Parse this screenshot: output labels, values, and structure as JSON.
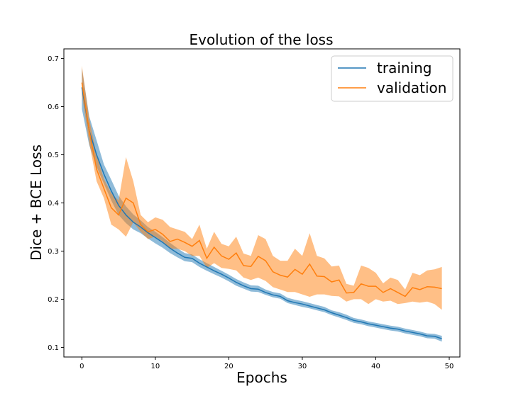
{
  "chart_data": {
    "type": "line",
    "title": "Evolution of the loss",
    "xlabel": "Epochs",
    "ylabel": "Dice + BCE Loss",
    "xlim": [
      -2.45,
      51.45
    ],
    "ylim": [
      0.08,
      0.72
    ],
    "xticks": [
      0,
      10,
      20,
      30,
      40,
      50
    ],
    "yticks": [
      0.1,
      0.2,
      0.3,
      0.4,
      0.5,
      0.6,
      0.7
    ],
    "grid": false,
    "legend_position": "top-right",
    "x": [
      0,
      1,
      2,
      3,
      4,
      5,
      6,
      7,
      8,
      9,
      10,
      11,
      12,
      13,
      14,
      15,
      16,
      17,
      18,
      19,
      20,
      21,
      22,
      23,
      24,
      25,
      26,
      27,
      28,
      29,
      30,
      31,
      32,
      33,
      34,
      35,
      36,
      37,
      38,
      39,
      40,
      41,
      42,
      43,
      44,
      45,
      46,
      47,
      48,
      49
    ],
    "series": [
      {
        "name": "training",
        "color": "#1f77b4",
        "band_color": "#1f77b4",
        "values": [
          0.64,
          0.55,
          0.5,
          0.46,
          0.425,
          0.395,
          0.375,
          0.36,
          0.35,
          0.338,
          0.328,
          0.318,
          0.306,
          0.296,
          0.287,
          0.285,
          0.275,
          0.267,
          0.259,
          0.252,
          0.244,
          0.235,
          0.228,
          0.222,
          0.221,
          0.214,
          0.209,
          0.206,
          0.197,
          0.193,
          0.19,
          0.186,
          0.182,
          0.178,
          0.172,
          0.167,
          0.162,
          0.156,
          0.153,
          0.149,
          0.146,
          0.143,
          0.14,
          0.138,
          0.134,
          0.131,
          0.128,
          0.124,
          0.123,
          0.118
        ],
        "lower": [
          0.595,
          0.52,
          0.475,
          0.44,
          0.405,
          0.375,
          0.358,
          0.345,
          0.337,
          0.326,
          0.316,
          0.307,
          0.296,
          0.287,
          0.279,
          0.277,
          0.267,
          0.259,
          0.252,
          0.245,
          0.237,
          0.228,
          0.222,
          0.216,
          0.215,
          0.209,
          0.204,
          0.201,
          0.192,
          0.188,
          0.184,
          0.181,
          0.177,
          0.173,
          0.167,
          0.162,
          0.157,
          0.151,
          0.148,
          0.144,
          0.141,
          0.138,
          0.135,
          0.133,
          0.129,
          0.126,
          0.123,
          0.119,
          0.118,
          0.112
        ],
        "upper": [
          0.68,
          0.58,
          0.53,
          0.48,
          0.448,
          0.415,
          0.393,
          0.376,
          0.364,
          0.35,
          0.34,
          0.329,
          0.317,
          0.306,
          0.296,
          0.293,
          0.283,
          0.275,
          0.267,
          0.259,
          0.251,
          0.242,
          0.235,
          0.229,
          0.228,
          0.22,
          0.215,
          0.212,
          0.203,
          0.199,
          0.196,
          0.192,
          0.188,
          0.184,
          0.177,
          0.173,
          0.168,
          0.161,
          0.158,
          0.154,
          0.151,
          0.148,
          0.145,
          0.143,
          0.139,
          0.136,
          0.133,
          0.129,
          0.128,
          0.124
        ]
      },
      {
        "name": "validation",
        "color": "#ff7f0e",
        "band_color": "#ff7f0e",
        "values": [
          0.65,
          0.55,
          0.47,
          0.43,
          0.39,
          0.375,
          0.41,
          0.4,
          0.355,
          0.34,
          0.345,
          0.335,
          0.32,
          0.325,
          0.318,
          0.31,
          0.322,
          0.285,
          0.308,
          0.29,
          0.283,
          0.296,
          0.27,
          0.268,
          0.289,
          0.28,
          0.257,
          0.25,
          0.246,
          0.262,
          0.252,
          0.273,
          0.248,
          0.247,
          0.236,
          0.24,
          0.213,
          0.214,
          0.232,
          0.227,
          0.227,
          0.214,
          0.222,
          0.214,
          0.206,
          0.224,
          0.22,
          0.226,
          0.225,
          0.222
        ],
        "lower": [
          0.625,
          0.525,
          0.445,
          0.41,
          0.355,
          0.345,
          0.33,
          0.36,
          0.34,
          0.325,
          0.33,
          0.32,
          0.305,
          0.305,
          0.3,
          0.29,
          0.29,
          0.265,
          0.275,
          0.265,
          0.263,
          0.26,
          0.245,
          0.24,
          0.245,
          0.238,
          0.225,
          0.22,
          0.215,
          0.215,
          0.21,
          0.205,
          0.21,
          0.21,
          0.207,
          0.206,
          0.195,
          0.2,
          0.2,
          0.19,
          0.2,
          0.195,
          0.197,
          0.19,
          0.192,
          0.195,
          0.193,
          0.195,
          0.19,
          0.178
        ],
        "upper": [
          0.685,
          0.575,
          0.5,
          0.45,
          0.42,
          0.405,
          0.495,
          0.445,
          0.375,
          0.36,
          0.37,
          0.365,
          0.35,
          0.345,
          0.34,
          0.325,
          0.355,
          0.305,
          0.34,
          0.315,
          0.31,
          0.33,
          0.295,
          0.29,
          0.333,
          0.325,
          0.29,
          0.28,
          0.28,
          0.305,
          0.29,
          0.337,
          0.29,
          0.285,
          0.268,
          0.27,
          0.232,
          0.228,
          0.27,
          0.265,
          0.255,
          0.233,
          0.245,
          0.24,
          0.22,
          0.255,
          0.25,
          0.26,
          0.262,
          0.267
        ]
      }
    ]
  }
}
